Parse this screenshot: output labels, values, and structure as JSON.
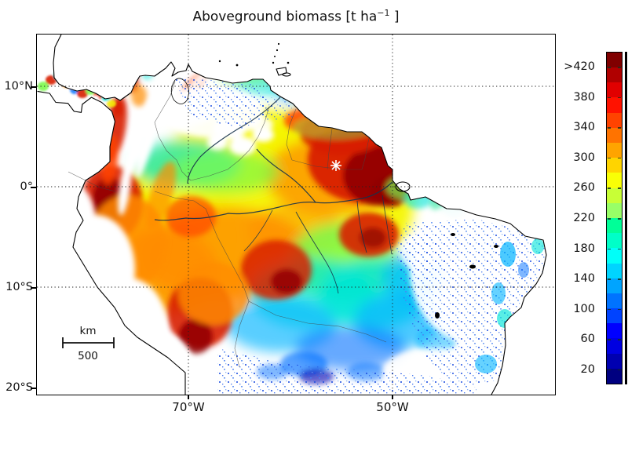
{
  "title": {
    "text_main": "Aboveground biomass [t ha",
    "superscript": "−1",
    "text_end": " ]"
  },
  "map": {
    "lat_labels": [
      "10°N",
      "0°",
      "10°S",
      "20°S"
    ],
    "lon_labels": [
      "70°W",
      "50°W"
    ],
    "scalebar": {
      "unit": "km",
      "distance": "500"
    }
  },
  "colorbar": {
    "min": 0,
    "max": 440,
    "band_size": 20,
    "ticks": [
      {
        "label": ">420",
        "value": 420
      },
      {
        "label": "380",
        "value": 380
      },
      {
        "label": "340",
        "value": 340
      },
      {
        "label": "300",
        "value": 300
      },
      {
        "label": "260",
        "value": 260
      },
      {
        "label": "220",
        "value": 220
      },
      {
        "label": "180",
        "value": 180
      },
      {
        "label": "140",
        "value": 140
      },
      {
        "label": "100",
        "value": 100
      },
      {
        "label": "60",
        "value": 60
      },
      {
        "label": "20",
        "value": 20
      }
    ],
    "colors_bottom_to_top": [
      "#000080",
      "#0000B0",
      "#0000E1",
      "#0000FF",
      "#0043FF",
      "#0073FF",
      "#00A4FF",
      "#00D4FF",
      "#00FFF9",
      "#00FFC8",
      "#00FF98",
      "#98FF67",
      "#C8FF36",
      "#F9FF06",
      "#FFD400",
      "#FFA400",
      "#FF7300",
      "#FF4300",
      "#FF1200",
      "#E10000",
      "#B00000",
      "#800000"
    ]
  },
  "chart_data": {
    "type": "heatmap",
    "title": "Aboveground biomass [t ha−1]",
    "units": "t ha−1",
    "value_range": [
      0,
      440
    ],
    "colorbar_tick_values": [
      20,
      60,
      100,
      140,
      180,
      220,
      260,
      300,
      340,
      380,
      420
    ],
    "colorbar_top_label": ">420",
    "lat_tick_labels": [
      "10°N",
      "0°",
      "10°S",
      "20°S"
    ],
    "lon_tick_labels": [
      "70°W",
      "50°W"
    ],
    "scalebar_km": 500,
    "colormap": "jet, discrete 20 t/ha bins",
    "legend_position": "right"
  }
}
